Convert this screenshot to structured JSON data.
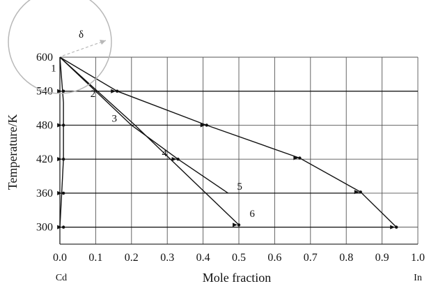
{
  "chart_data": {
    "type": "line",
    "xlabel": "Mole fraction",
    "ylabel": "Temperature/K",
    "xlim": [
      0,
      1.0
    ],
    "ylim": [
      270,
      600
    ],
    "x_ticks": [
      "0.0",
      "0.1",
      "0.2",
      "0.3",
      "0.4",
      "0.5",
      "0.6",
      "0.7",
      "0.8",
      "0.9",
      "1.0"
    ],
    "y_ticks": [
      "300",
      "360",
      "420",
      "480",
      "540",
      "600"
    ],
    "grid": true,
    "x_end_labels": {
      "left": "Cd",
      "right": "In"
    },
    "callout": {
      "label": "δ"
    },
    "series": [
      {
        "name": "1",
        "points": [
          [
            0,
            600
          ],
          [
            0.005,
            560
          ],
          [
            0.01,
            520
          ],
          [
            0.01,
            470
          ],
          [
            0.01,
            420
          ],
          [
            0.005,
            360
          ],
          [
            0.0,
            300
          ]
        ]
      },
      {
        "name": "2",
        "points": [
          [
            0,
            600
          ],
          [
            0.2,
            480
          ],
          [
            0.33,
            420
          ],
          [
            0.47,
            360
          ]
        ]
      },
      {
        "name": "3",
        "points": [
          [
            0,
            600
          ],
          [
            0.21,
            480
          ],
          [
            0.5,
            304
          ]
        ]
      },
      {
        "name": "4",
        "points": [
          [
            0,
            600
          ],
          [
            0.16,
            540
          ],
          [
            0.41,
            480
          ],
          [
            0.67,
            422
          ],
          [
            0.84,
            362
          ],
          [
            0.94,
            300
          ]
        ]
      }
    ],
    "annotations": [
      {
        "text": "1",
        "x": -0.025,
        "y": 575
      },
      {
        "text": "2",
        "x": 0.085,
        "y": 530
      },
      {
        "text": "3",
        "x": 0.145,
        "y": 486
      },
      {
        "text": "4",
        "x": 0.285,
        "y": 425
      },
      {
        "text": "5",
        "x": 0.495,
        "y": 366
      },
      {
        "text": "6",
        "x": 0.53,
        "y": 318
      }
    ],
    "tie_lines": [
      {
        "y": 540,
        "x1": 0.0,
        "x2": 1.0
      },
      {
        "y": 480,
        "x1": 0.0,
        "x2": 0.41
      },
      {
        "y": 420,
        "x1": 0.0,
        "x2": 0.33
      },
      {
        "y": 360,
        "x1": 0.0,
        "x2": 0.84
      },
      {
        "y": 300,
        "x1": 0.0,
        "x2": 0.94
      }
    ],
    "markers": [
      {
        "x": 0.01,
        "y": 540
      },
      {
        "x": 0.16,
        "y": 540
      },
      {
        "x": 0.01,
        "y": 480
      },
      {
        "x": 0.41,
        "y": 480
      },
      {
        "x": 0.01,
        "y": 420
      },
      {
        "x": 0.33,
        "y": 420
      },
      {
        "x": 0.67,
        "y": 422
      },
      {
        "x": 0.01,
        "y": 360
      },
      {
        "x": 0.84,
        "y": 362
      },
      {
        "x": 0.01,
        "y": 300
      },
      {
        "x": 0.5,
        "y": 304
      },
      {
        "x": 0.94,
        "y": 300
      }
    ]
  }
}
